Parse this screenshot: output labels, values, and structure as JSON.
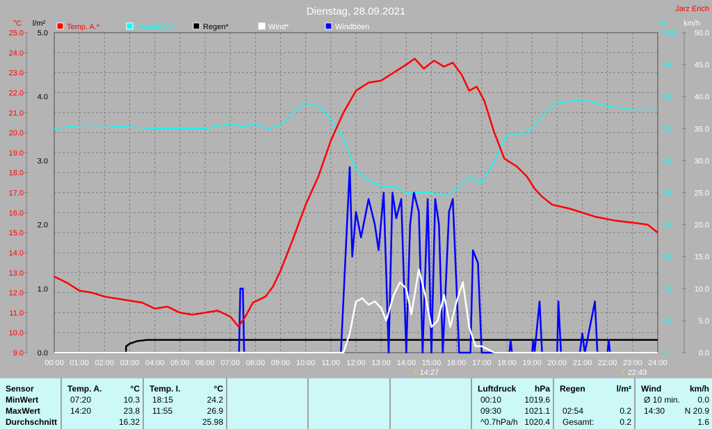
{
  "header": {
    "title": "Dienstag, 28.09.2021",
    "author": "Jarz Erich"
  },
  "chart_data": {
    "type": "line",
    "title": "Dienstag, 28.09.2021",
    "x_unit": "hour",
    "xlim": [
      0,
      24
    ],
    "x_ticks": [
      "00:00",
      "01:00",
      "02:00",
      "03:00",
      "04:00",
      "05:00",
      "06:00",
      "07:00",
      "08:00",
      "09:00",
      "10:00",
      "11:00",
      "12:00",
      "13:00",
      "14:00",
      "15:00",
      "16:00",
      "17:00",
      "18:00",
      "19:00",
      "20:00",
      "21:00",
      "22:00",
      "23:00",
      "24:00"
    ],
    "axes": {
      "temp": {
        "label": "°C",
        "range": [
          9,
          25
        ],
        "ticks": [
          "9.0",
          "10.0",
          "11.0",
          "12.0",
          "13.0",
          "14.0",
          "15.0",
          "16.0",
          "17.0",
          "18.0",
          "19.0",
          "20.0",
          "21.0",
          "22.0",
          "23.0",
          "24.0",
          "25.0"
        ],
        "color": "#ff0000"
      },
      "rain": {
        "label": "l/m²",
        "range": [
          0,
          5
        ],
        "ticks": [
          "0.0",
          "1.0",
          "2.0",
          "3.0",
          "4.0",
          "5.0"
        ],
        "color": "#000000"
      },
      "humidity": {
        "label": "%",
        "range": [
          0,
          100
        ],
        "ticks": [
          "0",
          "10",
          "20",
          "30",
          "40",
          "50",
          "60",
          "70",
          "80",
          "90",
          "100"
        ],
        "color": "#00ffff"
      },
      "wind": {
        "label": "km/h",
        "range": [
          0,
          50
        ],
        "ticks": [
          "0.0",
          "5.0",
          "10.0",
          "15.0",
          "20.0",
          "25.0",
          "30.0",
          "35.0",
          "40.0",
          "45.0",
          "50.0"
        ],
        "color": "#ffffff"
      }
    },
    "grid": true,
    "legend_position": "top",
    "series": [
      {
        "name": "Temp. A.*",
        "axis": "temp",
        "color": "#ff0000",
        "points": [
          [
            0,
            12.8
          ],
          [
            0.5,
            12.5
          ],
          [
            1,
            12.1
          ],
          [
            1.5,
            12.0
          ],
          [
            2,
            11.8
          ],
          [
            2.5,
            11.7
          ],
          [
            3,
            11.6
          ],
          [
            3.5,
            11.5
          ],
          [
            4,
            11.2
          ],
          [
            4.5,
            11.3
          ],
          [
            5,
            11.0
          ],
          [
            5.5,
            10.9
          ],
          [
            6,
            11.0
          ],
          [
            6.5,
            11.1
          ],
          [
            7,
            10.8
          ],
          [
            7.33,
            10.3
          ],
          [
            7.6,
            10.8
          ],
          [
            7.9,
            11.5
          ],
          [
            8.4,
            11.8
          ],
          [
            8.7,
            12.3
          ],
          [
            9,
            13.1
          ],
          [
            9.5,
            14.7
          ],
          [
            10,
            16.4
          ],
          [
            10.5,
            17.8
          ],
          [
            11,
            19.6
          ],
          [
            11.5,
            21.0
          ],
          [
            12,
            22.1
          ],
          [
            12.5,
            22.5
          ],
          [
            13,
            22.6
          ],
          [
            13.5,
            23.0
          ],
          [
            14,
            23.4
          ],
          [
            14.33,
            23.7
          ],
          [
            14.7,
            23.2
          ],
          [
            15.1,
            23.6
          ],
          [
            15.5,
            23.3
          ],
          [
            15.85,
            23.5
          ],
          [
            16.2,
            22.9
          ],
          [
            16.5,
            22.1
          ],
          [
            16.8,
            22.3
          ],
          [
            17.1,
            21.6
          ],
          [
            17.5,
            20.0
          ],
          [
            17.9,
            18.7
          ],
          [
            18.4,
            18.3
          ],
          [
            18.8,
            17.8
          ],
          [
            19.1,
            17.2
          ],
          [
            19.4,
            16.8
          ],
          [
            19.8,
            16.4
          ],
          [
            20.5,
            16.2
          ],
          [
            21.5,
            15.8
          ],
          [
            22.3,
            15.6
          ],
          [
            23,
            15.5
          ],
          [
            23.6,
            15.4
          ],
          [
            24,
            15.0
          ]
        ]
      },
      {
        "name": "Feuchte A.*",
        "axis": "humidity",
        "color": "#00ffff",
        "points": [
          [
            0,
            70
          ],
          [
            1,
            71
          ],
          [
            2,
            71
          ],
          [
            3,
            70.5
          ],
          [
            4,
            70
          ],
          [
            5,
            70
          ],
          [
            6,
            70
          ],
          [
            7,
            71.5
          ],
          [
            7.5,
            70.5
          ],
          [
            8,
            71.5
          ],
          [
            8.5,
            70
          ],
          [
            9,
            71
          ],
          [
            9.5,
            75
          ],
          [
            10,
            78
          ],
          [
            10.5,
            77
          ],
          [
            11,
            73
          ],
          [
            11.5,
            67
          ],
          [
            12,
            57
          ],
          [
            12.5,
            54
          ],
          [
            13,
            52
          ],
          [
            13.5,
            52
          ],
          [
            14,
            50
          ],
          [
            15,
            50
          ],
          [
            15.5,
            49
          ],
          [
            16,
            51
          ],
          [
            16.5,
            55
          ],
          [
            17,
            53
          ],
          [
            17.5,
            60
          ],
          [
            18,
            68
          ],
          [
            18.5,
            68
          ],
          [
            19,
            70
          ],
          [
            19.5,
            75
          ],
          [
            20,
            78
          ],
          [
            21,
            79
          ],
          [
            22,
            77
          ],
          [
            23,
            76
          ],
          [
            24,
            76
          ]
        ]
      },
      {
        "name": "Regen*",
        "axis": "rain",
        "color": "#000000",
        "points": [
          [
            0,
            0
          ],
          [
            2.85,
            0
          ],
          [
            2.86,
            0.1
          ],
          [
            3,
            0.14
          ],
          [
            3.3,
            0.18
          ],
          [
            3.7,
            0.2
          ],
          [
            24,
            0.2
          ]
        ]
      },
      {
        "name": "Wind*",
        "axis": "wind",
        "color": "#ffffff",
        "points": [
          [
            0,
            0
          ],
          [
            11.5,
            0
          ],
          [
            11.75,
            3
          ],
          [
            12,
            8
          ],
          [
            12.25,
            8.5
          ],
          [
            12.5,
            7.5
          ],
          [
            12.75,
            8
          ],
          [
            13,
            7
          ],
          [
            13.2,
            5
          ],
          [
            13.5,
            9
          ],
          [
            13.75,
            11
          ],
          [
            14,
            10
          ],
          [
            14.2,
            6
          ],
          [
            14.5,
            13
          ],
          [
            14.75,
            9
          ],
          [
            15,
            4
          ],
          [
            15.25,
            5
          ],
          [
            15.5,
            9
          ],
          [
            15.75,
            4
          ],
          [
            16,
            8
          ],
          [
            16.25,
            11
          ],
          [
            16.5,
            4
          ],
          [
            16.75,
            1
          ],
          [
            17,
            1
          ],
          [
            17.5,
            0
          ],
          [
            24,
            0
          ]
        ]
      },
      {
        "name": "Windböen",
        "axis": "wind",
        "color": "#0000ff",
        "points": [
          [
            0,
            0
          ],
          [
            7.35,
            0
          ],
          [
            7.4,
            10
          ],
          [
            7.5,
            10
          ],
          [
            7.55,
            0
          ],
          [
            11.4,
            0
          ],
          [
            11.75,
            29
          ],
          [
            11.85,
            15
          ],
          [
            12,
            22
          ],
          [
            12.2,
            18
          ],
          [
            12.5,
            24
          ],
          [
            12.75,
            20
          ],
          [
            12.9,
            16
          ],
          [
            13.1,
            25
          ],
          [
            13.3,
            0
          ],
          [
            13.45,
            25
          ],
          [
            13.6,
            21
          ],
          [
            13.8,
            24
          ],
          [
            14,
            0
          ],
          [
            14.15,
            20
          ],
          [
            14.3,
            25
          ],
          [
            14.5,
            22
          ],
          [
            14.65,
            0
          ],
          [
            14.85,
            24
          ],
          [
            15,
            0
          ],
          [
            15.15,
            24
          ],
          [
            15.3,
            20
          ],
          [
            15.45,
            0
          ],
          [
            15.7,
            22
          ],
          [
            15.85,
            24
          ],
          [
            16,
            10
          ],
          [
            16.1,
            0
          ],
          [
            16.55,
            0
          ],
          [
            16.65,
            16
          ],
          [
            16.85,
            14
          ],
          [
            17,
            0
          ],
          [
            18.1,
            0
          ],
          [
            18.15,
            2
          ],
          [
            18.2,
            0
          ],
          [
            19,
            0
          ],
          [
            19.05,
            2
          ],
          [
            19.1,
            0
          ],
          [
            19.3,
            8
          ],
          [
            19.4,
            0
          ],
          [
            20,
            0
          ],
          [
            20.05,
            8
          ],
          [
            20.15,
            0
          ],
          [
            20.9,
            0
          ],
          [
            21,
            3
          ],
          [
            21.1,
            0
          ],
          [
            21.5,
            8
          ],
          [
            21.6,
            0
          ],
          [
            22,
            0
          ],
          [
            22.05,
            2
          ],
          [
            22.1,
            0
          ],
          [
            24,
            0
          ]
        ]
      }
    ],
    "annotations": [
      {
        "label": "14:27",
        "hour": 14.45
      },
      {
        "label": "22:43",
        "hour": 22.72
      }
    ]
  },
  "table": {
    "sensor": {
      "label": "Sensor",
      "rows": [
        "MinWert",
        "MaxWert",
        "Durchschnitt"
      ]
    },
    "temp_a": {
      "label": "Temp. A.",
      "unit": "°C",
      "times": [
        "07:20",
        "14:20",
        ""
      ],
      "values": [
        "10.3",
        "23.8",
        "16.32"
      ]
    },
    "temp_i": {
      "label": "Temp. I.",
      "unit": "°C",
      "times": [
        "18:15",
        "11:55",
        ""
      ],
      "values": [
        "24.2",
        "26.9",
        "25.98"
      ]
    },
    "pressure": {
      "label": "Luftdruck",
      "unit": "hPa",
      "times": [
        "00:10",
        "09:30",
        "^0.7hPa/h"
      ],
      "values": [
        "1019.6",
        "1021.1",
        "1020.4"
      ]
    },
    "rain": {
      "label": "Regen",
      "unit": "l/m²",
      "times": [
        "",
        "02:54",
        "Gesamt:"
      ],
      "values": [
        "",
        "0.2",
        "0.2"
      ]
    },
    "wind": {
      "label": "Wind",
      "unit": "km/h",
      "times": [
        "Ø 10 min.",
        "14:30",
        ""
      ],
      "values": [
        "0.0",
        "N 20.9",
        "1.6"
      ]
    }
  }
}
